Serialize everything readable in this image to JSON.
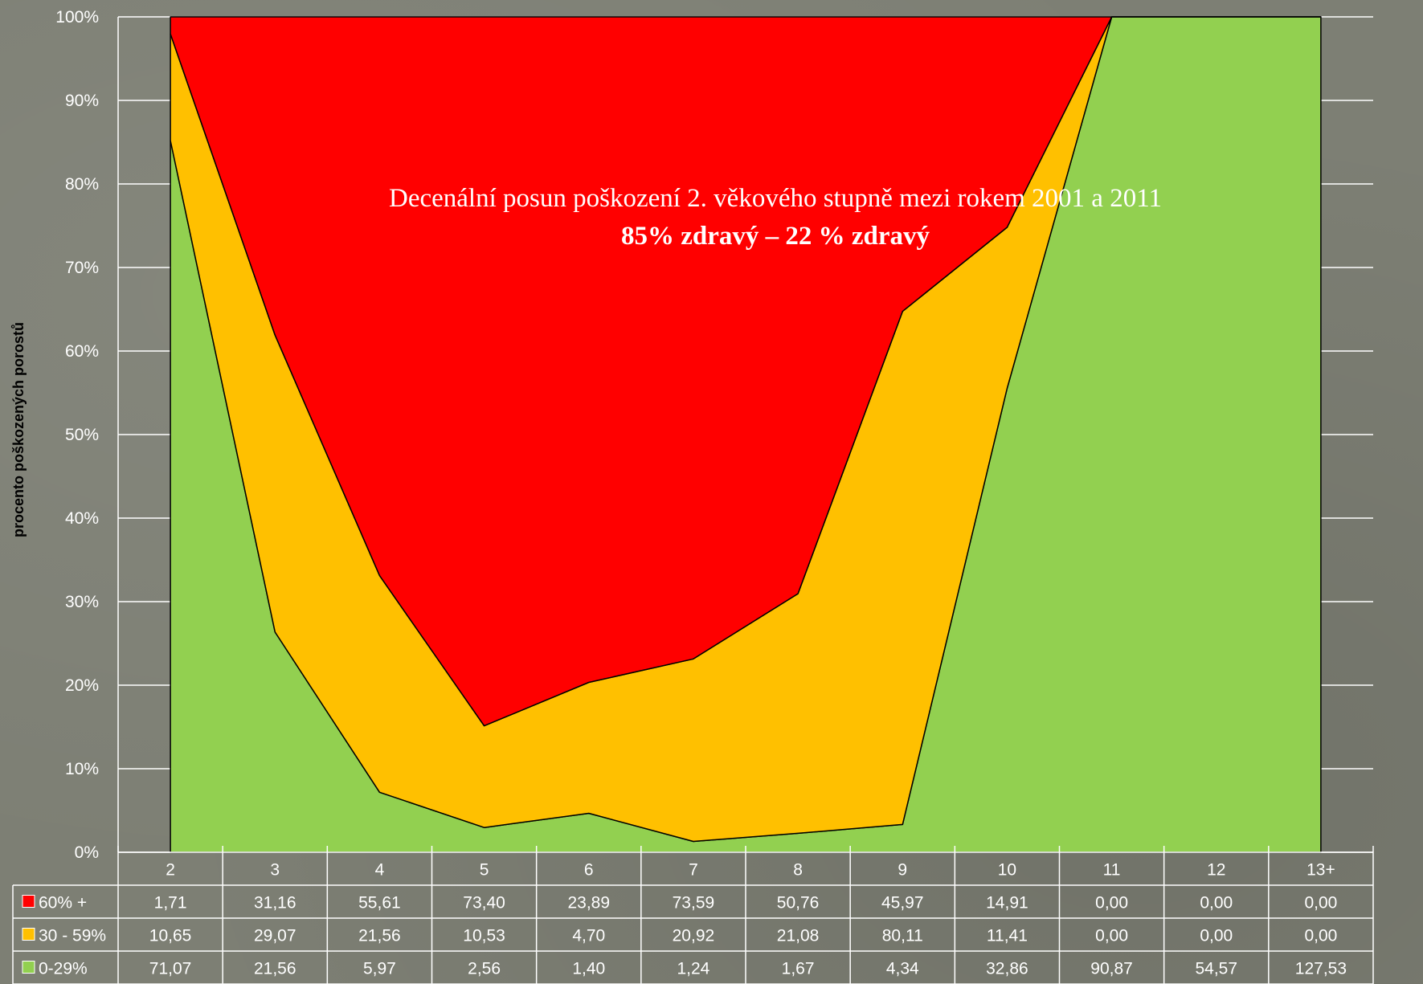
{
  "chart_data": {
    "type": "area",
    "stacked": "percent",
    "title": "Decenální posun poškození 2. věkového stupně mezi rokem 2001 a 2011",
    "subtitle": "85% zdravý – 22 % zdravý",
    "ylabel": "procento poškozených porostů",
    "xlabel": "",
    "ylim": [
      0,
      100
    ],
    "y_ticks": [
      "0%",
      "10%",
      "20%",
      "30%",
      "40%",
      "50%",
      "60%",
      "70%",
      "80%",
      "90%",
      "100%"
    ],
    "categories": [
      "2",
      "3",
      "4",
      "5",
      "6",
      "7",
      "8",
      "9",
      "10",
      "11",
      "12",
      "13+"
    ],
    "grid": true,
    "legend_placement": "data-table-left",
    "series": [
      {
        "name": "60% +",
        "color": "#ff0000",
        "values": [
          1.71,
          31.16,
          55.61,
          73.4,
          23.89,
          73.59,
          50.76,
          45.97,
          14.91,
          0.0,
          0.0,
          0.0
        ],
        "labels": [
          "1,71",
          "31,16",
          "55,61",
          "73,40",
          "23,89",
          "73,59",
          "50,76",
          "45,97",
          "14,91",
          "0,00",
          "0,00",
          "0,00"
        ]
      },
      {
        "name": "30 - 59%",
        "color": "#ffc000",
        "values": [
          10.65,
          29.07,
          21.56,
          10.53,
          4.7,
          20.92,
          21.08,
          80.11,
          11.41,
          0.0,
          0.0,
          0.0
        ],
        "labels": [
          "10,65",
          "29,07",
          "21,56",
          "10,53",
          "4,70",
          "20,92",
          "21,08",
          "80,11",
          "11,41",
          "0,00",
          "0,00",
          "0,00"
        ]
      },
      {
        "name": "0-29%",
        "color": "#92d050",
        "values": [
          71.07,
          21.56,
          5.97,
          2.56,
          1.4,
          1.24,
          1.67,
          4.34,
          32.86,
          90.87,
          54.57,
          127.53
        ],
        "labels": [
          "71,07",
          "21,56",
          "5,97",
          "2,56",
          "1,40",
          "1,24",
          "1,67",
          "4,34",
          "32,86",
          "90,87",
          "54,57",
          "127,53"
        ]
      }
    ]
  }
}
